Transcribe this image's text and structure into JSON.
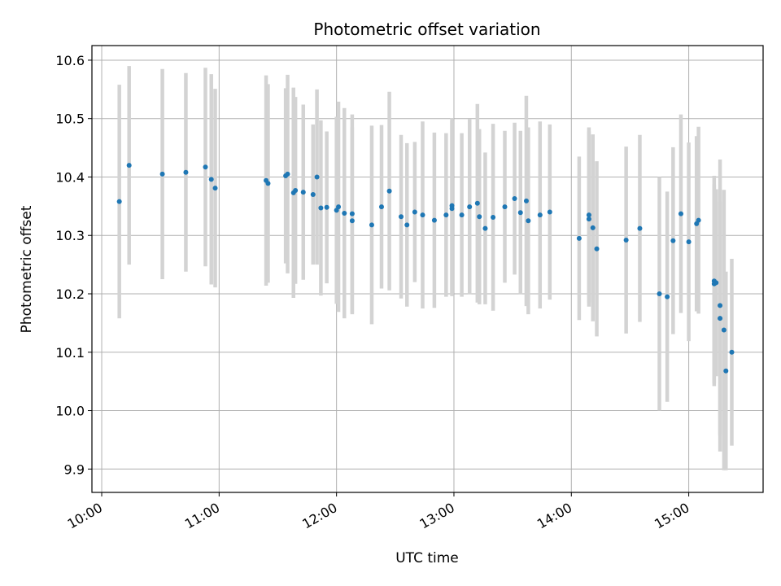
{
  "chart_data": {
    "type": "scatter",
    "title": "Photometric offset variation",
    "xlabel": "UTC time",
    "ylabel": "Photometric offset",
    "x_ticks": [
      "10:00",
      "11:00",
      "12:00",
      "13:00",
      "14:00",
      "15:00"
    ],
    "y_ticks": [
      "9.9",
      "10.0",
      "10.1",
      "10.2",
      "10.3",
      "10.4",
      "10.5",
      "10.6"
    ],
    "xlim": [
      "09:55",
      "15:38"
    ],
    "ylim": [
      9.86,
      10.625
    ],
    "grid": true,
    "colors": {
      "point": "#1f77b4",
      "errorbar": "#d3d3d3",
      "grid": "#b0b0b0"
    },
    "series": [
      {
        "x": [
          "10:09",
          "10:14",
          "10:31",
          "10:43",
          "10:53",
          "10:56",
          "10:58",
          "11:24",
          "11:25",
          "11:34",
          "11:35",
          "11:38",
          "11:39",
          "11:43",
          "11:48",
          "11:50",
          "11:52",
          "11:55",
          "12:00",
          "12:01",
          "12:04",
          "12:08",
          "12:08",
          "12:18",
          "12:23",
          "12:27",
          "12:33",
          "12:36",
          "12:40",
          "12:44",
          "12:50",
          "12:56",
          "12:59",
          "12:59",
          "13:04",
          "13:08",
          "13:12",
          "13:13",
          "13:16",
          "13:20",
          "13:26",
          "13:31",
          "13:34",
          "13:37",
          "13:38",
          "13:44",
          "13:49",
          "14:04",
          "14:09",
          "14:09",
          "14:11",
          "14:13",
          "14:28",
          "14:35",
          "14:45",
          "14:49",
          "14:52",
          "14:56",
          "15:00",
          "15:04",
          "15:05",
          "15:13",
          "15:13",
          "15:14",
          "15:16",
          "15:16",
          "15:18",
          "15:19",
          "15:22"
        ],
        "y": [
          10.358,
          10.42,
          10.405,
          10.408,
          10.417,
          10.396,
          10.381,
          10.394,
          10.389,
          10.402,
          10.405,
          10.373,
          10.377,
          10.374,
          10.37,
          10.4,
          10.347,
          10.348,
          10.343,
          10.349,
          10.338,
          10.337,
          10.325,
          10.318,
          10.349,
          10.376,
          10.332,
          10.318,
          10.34,
          10.335,
          10.326,
          10.335,
          10.351,
          10.346,
          10.335,
          10.349,
          10.355,
          10.332,
          10.312,
          10.331,
          10.349,
          10.363,
          10.339,
          10.359,
          10.325,
          10.335,
          10.34,
          10.295,
          10.328,
          10.335,
          10.313,
          10.277,
          10.292,
          10.312,
          10.2,
          10.195,
          10.291,
          10.337,
          10.289,
          10.32,
          10.326,
          10.222,
          10.217,
          10.219,
          10.18,
          10.158,
          10.138,
          10.068,
          10.1
        ],
        "yerr": [
          0.2,
          0.17,
          0.18,
          0.17,
          0.17,
          0.18,
          0.17,
          0.18,
          0.17,
          0.15,
          0.17,
          0.18,
          0.16,
          0.15,
          0.12,
          0.15,
          0.15,
          0.13,
          0.16,
          0.18,
          0.18,
          0.17,
          0.16,
          0.17,
          0.14,
          0.17,
          0.14,
          0.14,
          0.12,
          0.16,
          0.15,
          0.14,
          0.15,
          0.15,
          0.14,
          0.15,
          0.17,
          0.15,
          0.13,
          0.16,
          0.13,
          0.13,
          0.14,
          0.18,
          0.16,
          0.16,
          0.15,
          0.14,
          0.15,
          0.15,
          0.16,
          0.15,
          0.16,
          0.16,
          0.2,
          0.18,
          0.16,
          0.17,
          0.17,
          0.15,
          0.16,
          0.18,
          0.17,
          0.16,
          0.25,
          0.2,
          0.24,
          0.17,
          0.16
        ]
      }
    ]
  }
}
